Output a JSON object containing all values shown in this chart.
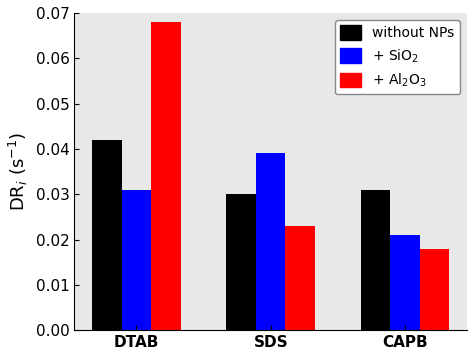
{
  "categories": [
    "DTAB",
    "SDS",
    "CAPB"
  ],
  "series": {
    "without NPs": [
      0.042,
      0.03,
      0.031
    ],
    "+ SiO2": [
      0.031,
      0.039,
      0.021
    ],
    "+ Al2O3": [
      0.068,
      0.023,
      0.018
    ]
  },
  "colors": {
    "without NPs": "#000000",
    "+ SiO2": "#0000ff",
    "+ Al2O3": "#ff0000"
  },
  "legend_labels": [
    "without NPs",
    "+ SiO$_2$",
    "+ Al$_2$O$_3$"
  ],
  "ylabel": "DR$_i$ (s$^{-1}$)",
  "ylim": [
    0.0,
    0.07
  ],
  "yticks": [
    0.0,
    0.01,
    0.02,
    0.03,
    0.04,
    0.05,
    0.06,
    0.07
  ],
  "bar_width": 0.22,
  "background_color": "#ffffff",
  "axes_bg": "#e8e8e8"
}
